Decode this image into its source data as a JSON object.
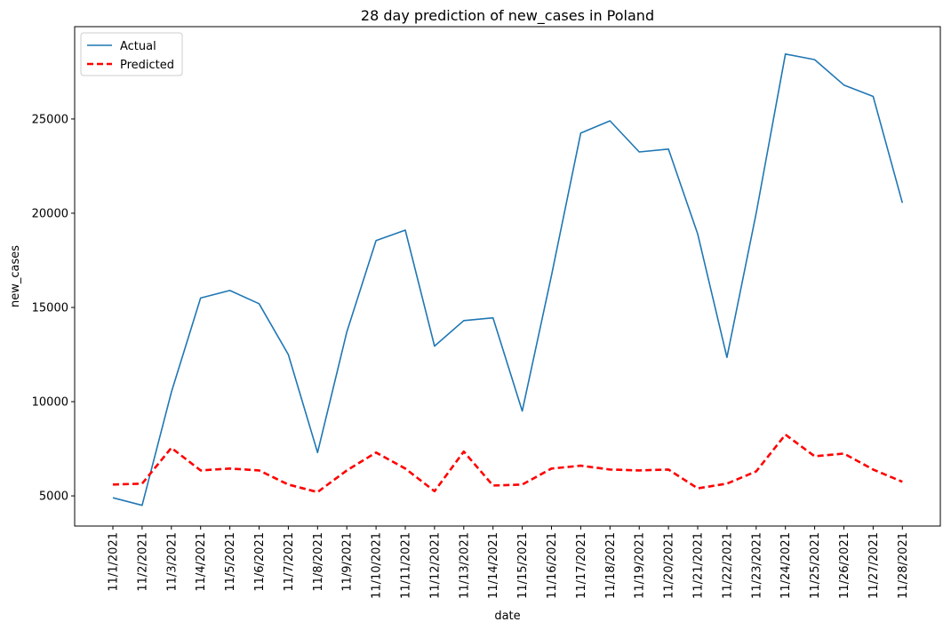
{
  "chart_data": {
    "type": "line",
    "title": "28 day prediction of new_cases in Poland",
    "xlabel": "date",
    "ylabel": "new_cases",
    "categories": [
      "11/1/2021",
      "11/2/2021",
      "11/3/2021",
      "11/4/2021",
      "11/5/2021",
      "11/6/2021",
      "11/7/2021",
      "11/8/2021",
      "11/9/2021",
      "11/10/2021",
      "11/11/2021",
      "11/12/2021",
      "11/13/2021",
      "11/14/2021",
      "11/15/2021",
      "11/16/2021",
      "11/17/2021",
      "11/18/2021",
      "11/19/2021",
      "11/20/2021",
      "11/21/2021",
      "11/22/2021",
      "11/23/2021",
      "11/24/2021",
      "11/25/2021",
      "11/26/2021",
      "11/27/2021",
      "11/28/2021"
    ],
    "ylim": [
      3400,
      29900
    ],
    "yticks": [
      5000,
      10000,
      15000,
      20000,
      25000
    ],
    "grid": false,
    "legend_position": "top-left",
    "series": [
      {
        "name": "Actual",
        "color": "#1f77b4",
        "style": "solid",
        "values": [
          4900,
          4500,
          10500,
          15500,
          15900,
          15200,
          12500,
          7300,
          13700,
          18550,
          19100,
          12950,
          14300,
          14450,
          9500,
          16700,
          24250,
          24900,
          23250,
          23400,
          18900,
          12350,
          20000,
          28450,
          28150,
          26800,
          26200,
          20550
        ]
      },
      {
        "name": "Predicted",
        "color": "#ff0000",
        "style": "dashed",
        "values": [
          5600,
          5650,
          7550,
          6350,
          6450,
          6350,
          5600,
          5200,
          6350,
          7300,
          6450,
          5250,
          7350,
          5550,
          5600,
          6450,
          6600,
          6400,
          6350,
          6400,
          5400,
          5650,
          6300,
          8250,
          7100,
          7250,
          6400,
          5750
        ]
      }
    ]
  }
}
